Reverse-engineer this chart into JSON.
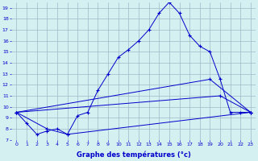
{
  "xlabel": "Graphe des températures (°c)",
  "bg_color": "#d4f0f0",
  "grid_color": "#a0b8c8",
  "line_color": "#0000cc",
  "xlim": [
    -0.5,
    23.5
  ],
  "ylim": [
    7,
    19.5
  ],
  "yticks": [
    7,
    8,
    9,
    10,
    11,
    12,
    13,
    14,
    15,
    16,
    17,
    18,
    19
  ],
  "xticks": [
    0,
    1,
    2,
    3,
    4,
    5,
    6,
    7,
    8,
    9,
    10,
    11,
    12,
    13,
    14,
    15,
    16,
    17,
    18,
    19,
    20,
    21,
    22,
    23
  ],
  "line1_x": [
    0,
    1,
    2,
    3,
    4,
    5,
    6,
    7,
    8,
    9,
    10,
    11,
    12,
    13,
    14,
    15,
    16,
    17,
    18,
    19,
    20,
    21,
    22,
    23
  ],
  "line1_y": [
    9.5,
    8.5,
    7.5,
    7.8,
    8.0,
    7.5,
    9.2,
    9.5,
    11.5,
    13.0,
    14.5,
    15.2,
    16.0,
    17.0,
    18.5,
    19.5,
    18.5,
    16.5,
    15.5,
    15.0,
    12.5,
    9.5,
    9.5,
    9.5
  ],
  "line2_x": [
    0,
    3,
    5,
    23
  ],
  "line2_y": [
    9.5,
    8.0,
    7.5,
    9.5
  ],
  "line3_x": [
    0,
    19,
    23
  ],
  "line3_y": [
    9.5,
    12.5,
    9.5
  ],
  "line4_x": [
    0,
    20,
    23
  ],
  "line4_y": [
    9.5,
    11.0,
    9.5
  ]
}
